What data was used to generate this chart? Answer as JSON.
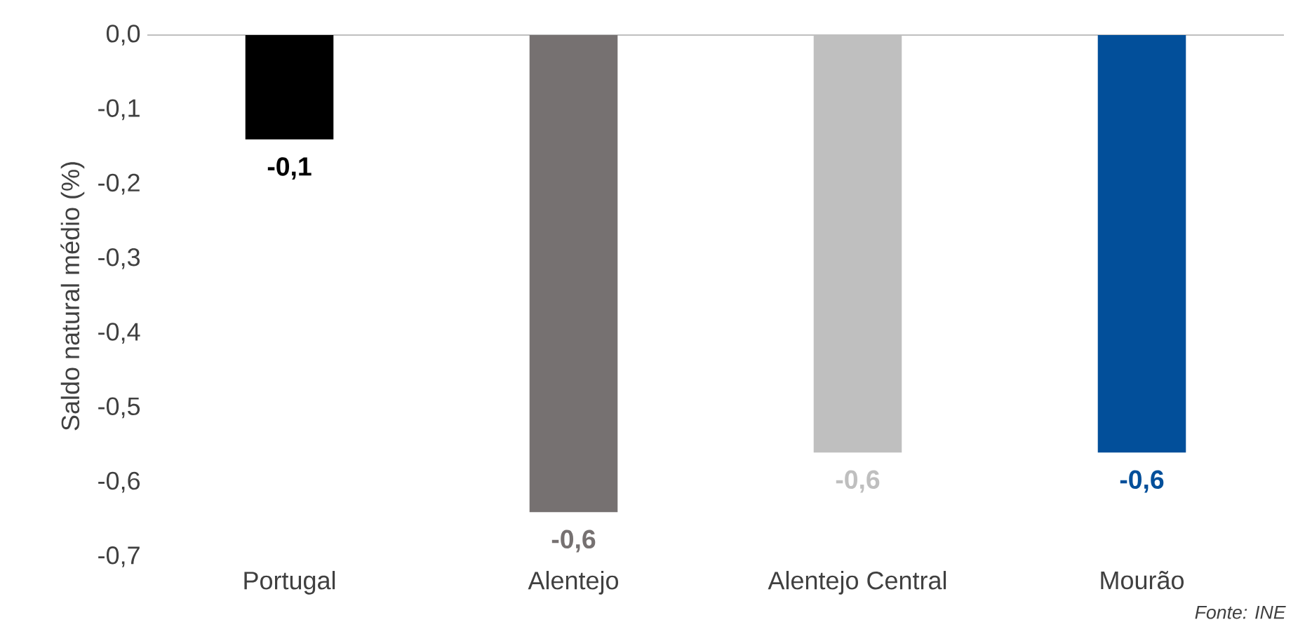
{
  "chart_data": {
    "type": "bar",
    "categories": [
      "Portugal",
      "Alentejo",
      "Alentejo Central",
      "Mourão"
    ],
    "values": [
      -0.14,
      -0.64,
      -0.56,
      -0.56
    ],
    "colors": [
      "#000000",
      "#767171",
      "#bfbfbf",
      "#024f9a"
    ],
    "value_labels": [
      "-0,1",
      "-0,6",
      "-0,6",
      "-0,6"
    ],
    "ylabel": "Saldo natural médio (%)",
    "ylim": [
      -0.7,
      0
    ],
    "yticks": [
      {
        "value": -0.7,
        "label": "-0,7"
      },
      {
        "value": -0.6,
        "label": "-0,6"
      },
      {
        "value": -0.5,
        "label": "-0,5"
      },
      {
        "value": -0.4,
        "label": "-0,4"
      },
      {
        "value": -0.3,
        "label": "-0,3"
      },
      {
        "value": -0.2,
        "label": "-0,2"
      },
      {
        "value": -0.1,
        "label": "-0,1"
      },
      {
        "value": 0,
        "label": "0,0"
      }
    ],
    "annotations": [
      "Fonte: INE"
    ]
  }
}
